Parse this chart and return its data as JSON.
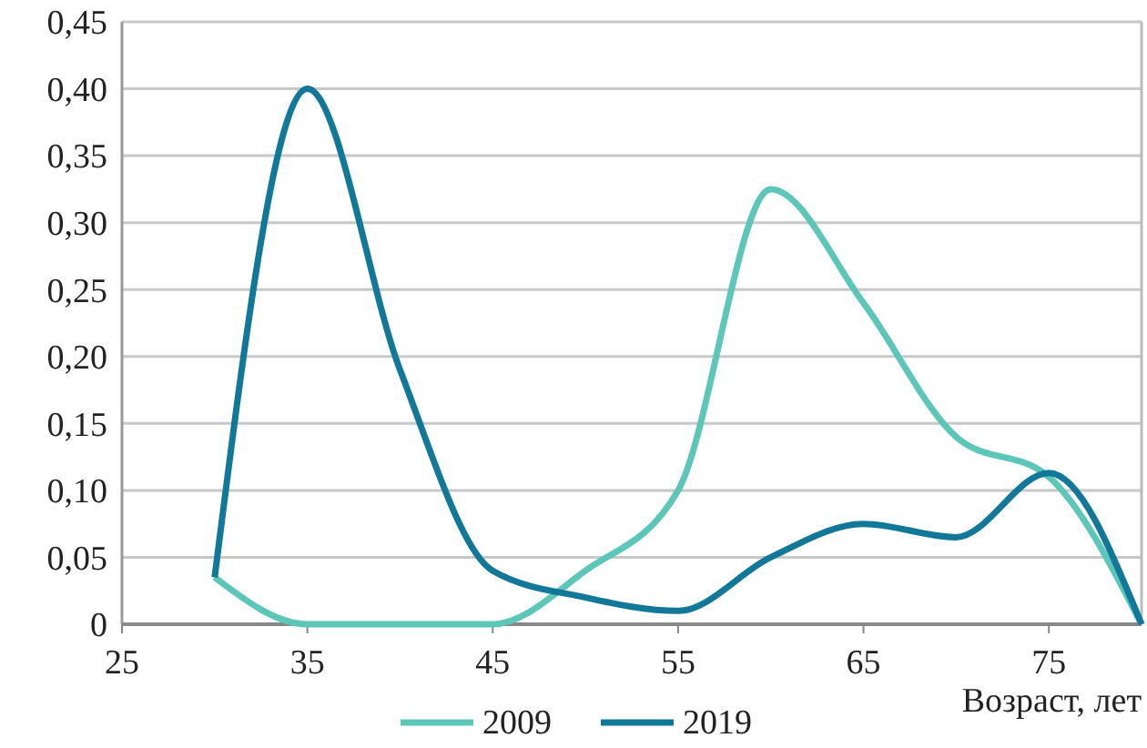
{
  "chart_data": {
    "type": "line",
    "xlabel": "Возраст, лет",
    "x": [
      30,
      35,
      40,
      45,
      50,
      55,
      60,
      65,
      70,
      75,
      80
    ],
    "series": [
      {
        "name": "2009",
        "color": "#5cc6b9",
        "values": [
          0.035,
          0,
          0,
          0,
          0.04,
          0.1,
          0.325,
          0.24,
          0.14,
          0.11,
          0
        ]
      },
      {
        "name": "2019",
        "color": "#12789a",
        "values": [
          0.035,
          0.4,
          0.19,
          0.04,
          0.02,
          0.01,
          0.05,
          0.075,
          0.065,
          0.113,
          0
        ]
      }
    ],
    "xlim": [
      25,
      80
    ],
    "xticks": [
      25,
      35,
      45,
      55,
      65,
      75
    ],
    "ylim": [
      0,
      0.45
    ],
    "yticks": [
      {
        "value": 0,
        "label": "0"
      },
      {
        "value": 0.05,
        "label": "0,05"
      },
      {
        "value": 0.1,
        "label": "0,10"
      },
      {
        "value": 0.15,
        "label": "0,15"
      },
      {
        "value": 0.2,
        "label": "0,20"
      },
      {
        "value": 0.25,
        "label": "0,25"
      },
      {
        "value": 0.3,
        "label": "0,30"
      },
      {
        "value": 0.35,
        "label": "0,35"
      },
      {
        "value": 0.4,
        "label": "0,40"
      },
      {
        "value": 0.45,
        "label": "0,45"
      }
    ],
    "grid": "y",
    "legend": "bottom",
    "marker": "none",
    "line_style": "solid"
  }
}
